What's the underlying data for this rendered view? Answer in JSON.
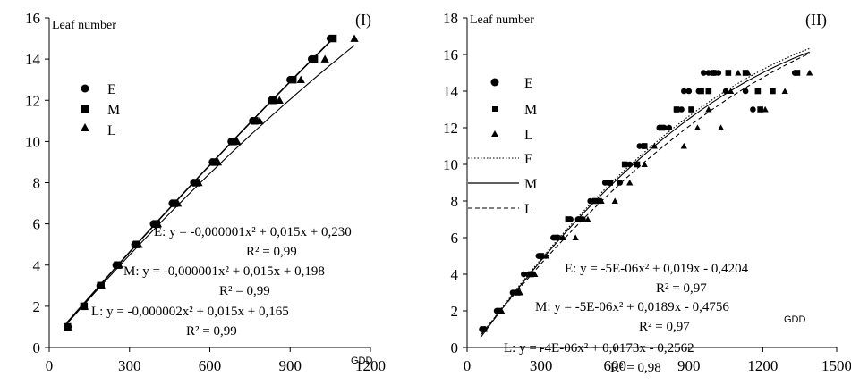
{
  "chart_data": [
    {
      "type": "scatter",
      "panel_label": "(I)",
      "ylabel": "Leaf number",
      "xlabel": "GDD",
      "xlim": [
        0,
        1200
      ],
      "ylim": [
        0,
        16
      ],
      "xticks": [
        0,
        300,
        600,
        900,
        1200
      ],
      "yticks": [
        0,
        2,
        4,
        6,
        8,
        10,
        12,
        14,
        16
      ],
      "grid": false,
      "legend_position": "upper-left",
      "series": [
        {
          "name": "E",
          "marker": "circle",
          "x": [
            70,
            130,
            190,
            250,
            320,
            390,
            460,
            540,
            610,
            680,
            760,
            830,
            900,
            980,
            1050
          ],
          "y": [
            1,
            2,
            3,
            4,
            5,
            6,
            7,
            8,
            9,
            10,
            11,
            12,
            13,
            14,
            15
          ]
        },
        {
          "name": "M",
          "marker": "square",
          "x": [
            68,
            130,
            193,
            256,
            327,
            400,
            468,
            548,
            617,
            687,
            767,
            837,
            910,
            990,
            1060
          ],
          "y": [
            1,
            2,
            3,
            4,
            5,
            6,
            7,
            8,
            9,
            10,
            11,
            12,
            13,
            14,
            15
          ]
        },
        {
          "name": "L",
          "marker": "triangle",
          "x": [
            70,
            132,
            196,
            262,
            334,
            406,
            480,
            558,
            630,
            702,
            786,
            860,
            940,
            1030,
            1140
          ],
          "y": [
            1,
            2,
            3,
            4,
            5,
            6,
            7,
            8,
            9,
            10,
            11,
            12,
            13,
            14,
            15
          ]
        }
      ],
      "trendlines": [
        {
          "name": "E",
          "a": -1e-06,
          "b": 0.015,
          "c": 0.23,
          "x_range": [
            65,
            1055
          ]
        },
        {
          "name": "M",
          "a": -1e-06,
          "b": 0.015,
          "c": 0.198,
          "x_range": [
            65,
            1065
          ]
        },
        {
          "name": "L",
          "a": -2e-06,
          "b": 0.015,
          "c": 0.165,
          "x_range": [
            65,
            1140
          ]
        }
      ],
      "equations": [
        {
          "eq": "E: y = -0,000001x² + 0,015x + 0,230",
          "r2": "R² = 0,99"
        },
        {
          "eq": "M: y = -0,000001x² + 0,015x + 0,198",
          "r2": "R² = 0,99"
        },
        {
          "eq": "L: y = -0,000002x² + 0,015x + 0,165",
          "r2": "R² = 0,99"
        }
      ]
    },
    {
      "type": "scatter",
      "panel_label": "(II)",
      "ylabel": "Leaf number",
      "xlabel": "GDD",
      "xlim": [
        0,
        1500
      ],
      "ylim": [
        0,
        18
      ],
      "xticks": [
        0,
        300,
        600,
        900,
        1200,
        1500
      ],
      "yticks": [
        0,
        2,
        4,
        6,
        8,
        10,
        12,
        14,
        16,
        18
      ],
      "grid": false,
      "legend_position": "left",
      "series": [
        {
          "name": "E",
          "marker": "circle",
          "x": [
            60,
            70,
            120,
            185,
            195,
            230,
            250,
            290,
            300,
            350,
            370,
            420,
            450,
            470,
            500,
            540,
            560,
            580,
            620,
            640,
            660,
            700,
            720,
            780,
            800,
            820,
            850,
            870,
            880,
            900,
            940,
            960,
            980,
            1000,
            1020,
            1050,
            1130,
            1160,
            1330
          ],
          "y": [
            1,
            1,
            2,
            3,
            3,
            4,
            4,
            5,
            5,
            6,
            6,
            7,
            7,
            7,
            8,
            8,
            9,
            9,
            9,
            10,
            10,
            11,
            11,
            12,
            12,
            12,
            13,
            13,
            14,
            14,
            14,
            15,
            15,
            15,
            15,
            14,
            14,
            13,
            15
          ]
        },
        {
          "name": "M",
          "marker": "square",
          "x": [
            65,
            130,
            205,
            260,
            300,
            360,
            410,
            460,
            520,
            580,
            640,
            690,
            720,
            790,
            850,
            910,
            950,
            980,
            1000,
            1060,
            1130,
            1180,
            1190,
            1240,
            1340
          ],
          "y": [
            1,
            2,
            3,
            4,
            5,
            6,
            7,
            7,
            8,
            9,
            10,
            10,
            11,
            12,
            13,
            13,
            14,
            14,
            15,
            15,
            15,
            14,
            13,
            14,
            15
          ]
        },
        {
          "name": "L",
          "marker": "triangle",
          "x": [
            70,
            140,
            215,
            275,
            320,
            390,
            440,
            490,
            545,
            600,
            660,
            720,
            760,
            820,
            880,
            935,
            980,
            1030,
            1070,
            1100,
            1140,
            1210,
            1290,
            1390
          ],
          "y": [
            1,
            2,
            3,
            4,
            5,
            6,
            6,
            7,
            8,
            8,
            9,
            10,
            11,
            12,
            11,
            12,
            13,
            12,
            14,
            15,
            15,
            13,
            14,
            15
          ]
        }
      ],
      "trendlines": [
        {
          "name": "E",
          "style": "dotted",
          "a": -5e-06,
          "b": 0.019,
          "c": -0.4204,
          "x_range": [
            55,
            1390
          ]
        },
        {
          "name": "M",
          "style": "solid",
          "a": -5e-06,
          "b": 0.0189,
          "c": -0.4756,
          "x_range": [
            55,
            1390
          ]
        },
        {
          "name": "L",
          "style": "dashed",
          "a": -4e-06,
          "b": 0.0173,
          "c": -0.2562,
          "x_range": [
            55,
            1390
          ]
        }
      ],
      "equations": [
        {
          "eq": "E: y = -5E-06x² + 0,019x - 0,4204",
          "r2": "R² = 0,97"
        },
        {
          "eq": "M: y = -5E-06x² + 0,0189x - 0,4756",
          "r2": "R² = 0,97"
        },
        {
          "eq": "L: y = -4E-06x² + 0,0173x - 0,2562",
          "r2": "R² = 0,98"
        }
      ]
    }
  ]
}
